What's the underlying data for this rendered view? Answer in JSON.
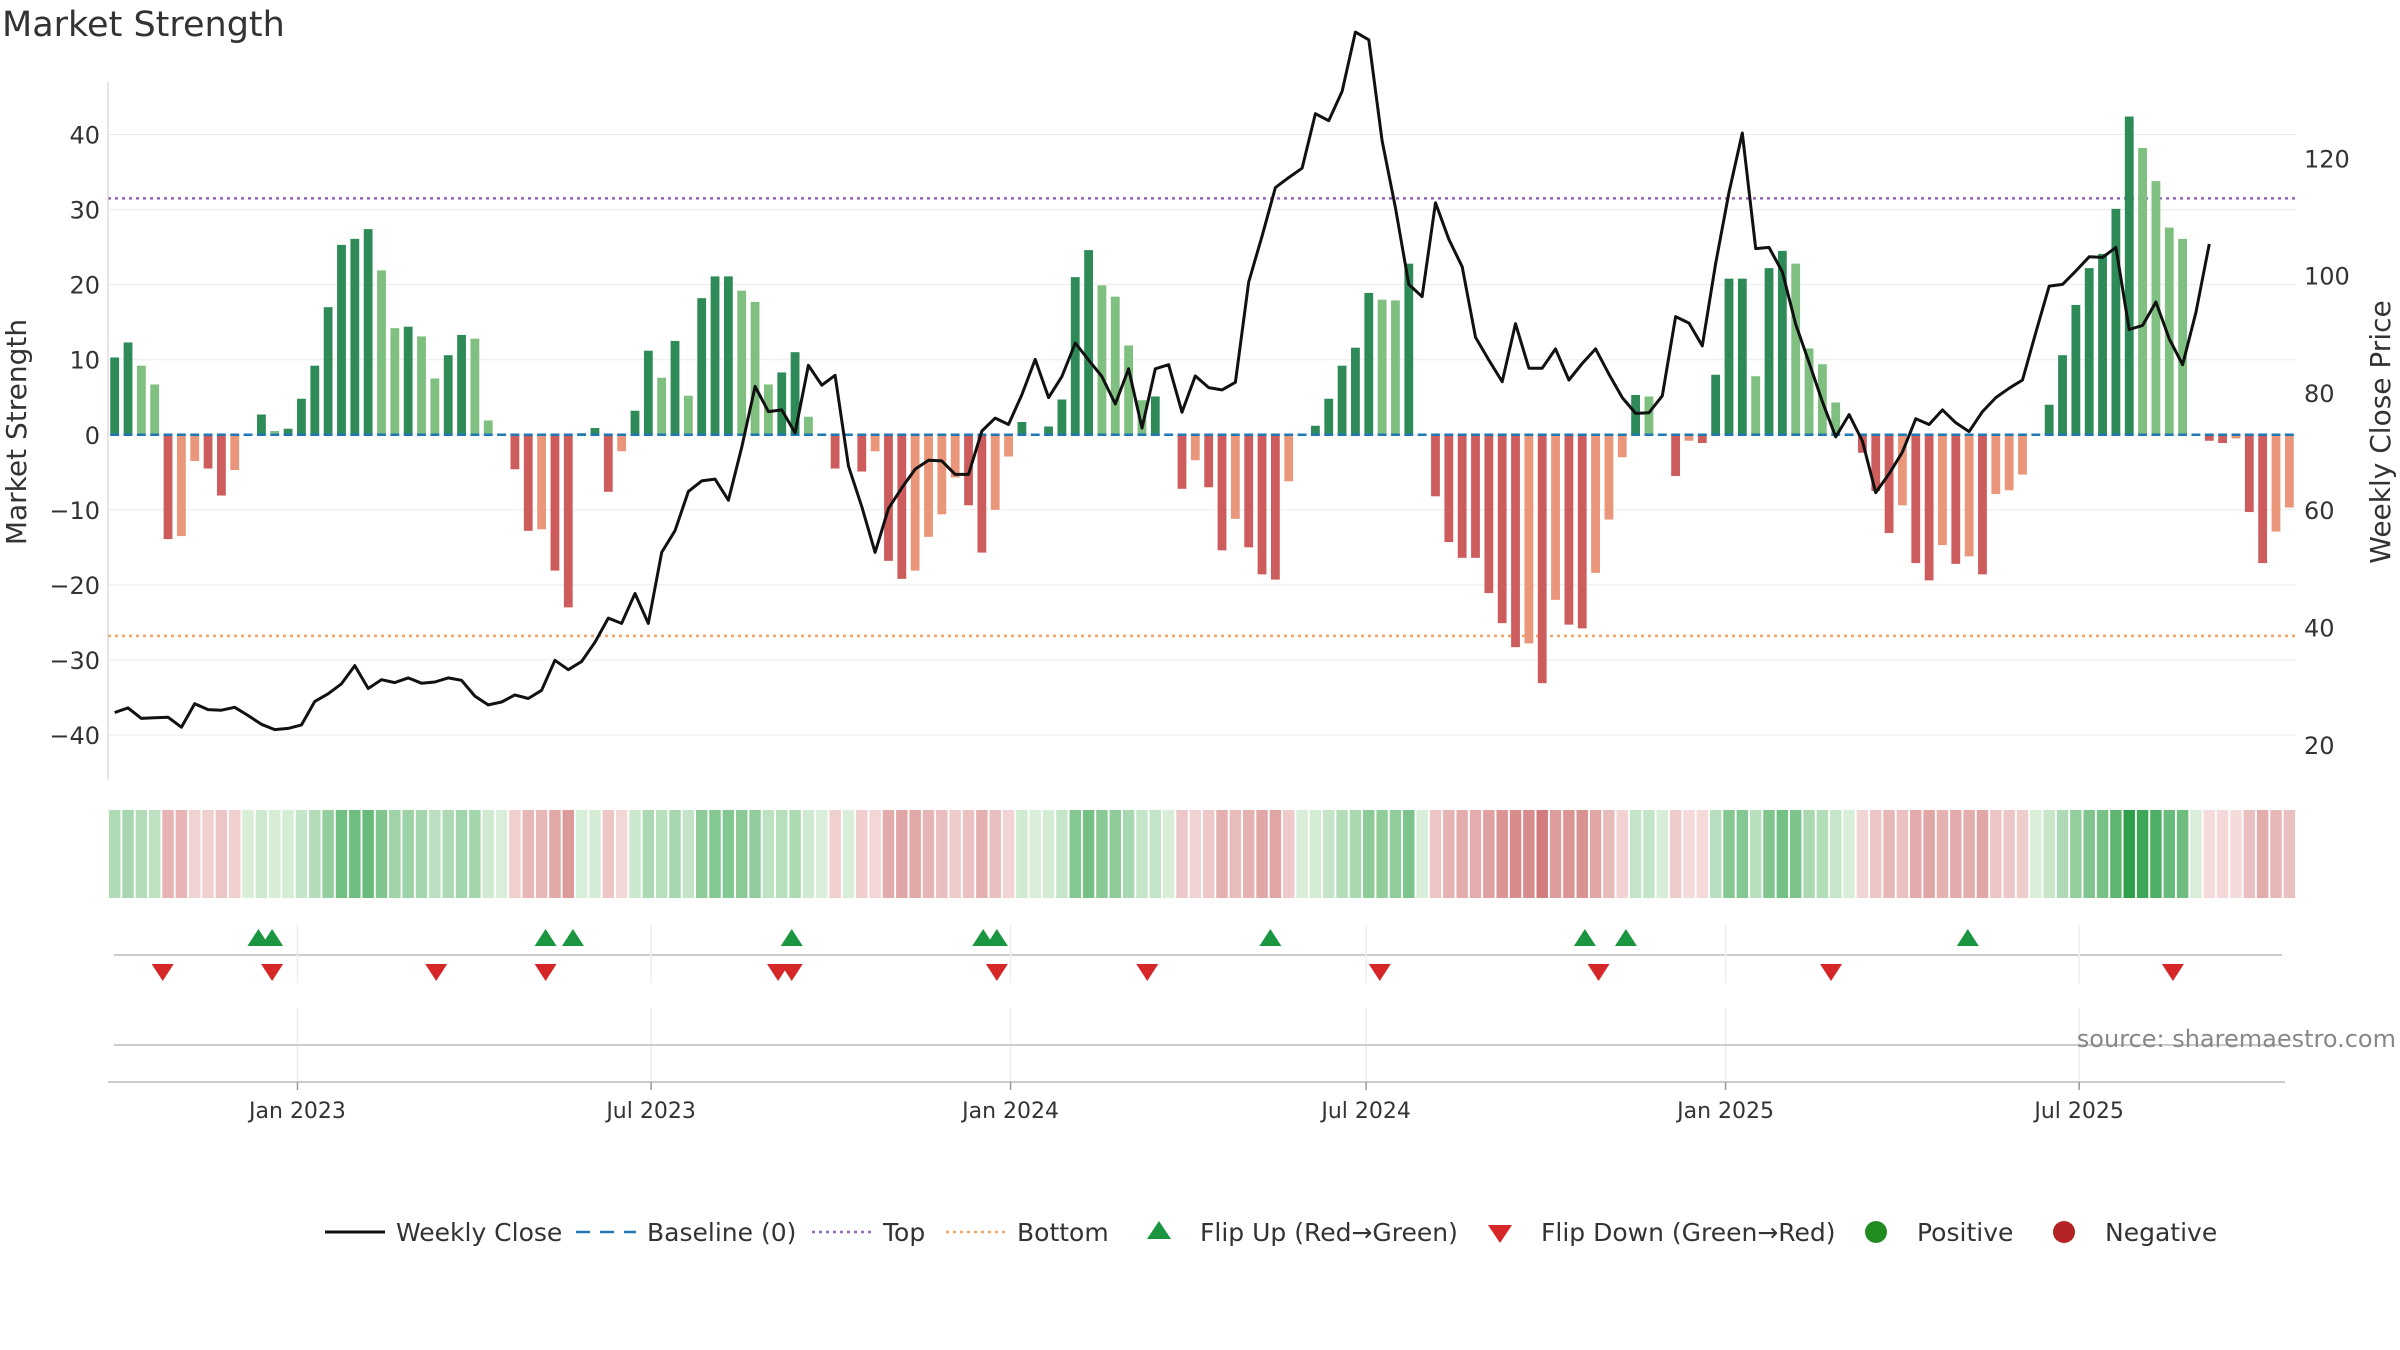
{
  "chart_data": {
    "type": "bar",
    "title": "Market Strength",
    "ylabel": "Market Strength",
    "y2label": "Weekly Close Price",
    "ylim": [
      -46,
      47
    ],
    "y2lim": [
      14,
      133
    ],
    "yticks": [
      40,
      30,
      20,
      10,
      0,
      -10,
      -20,
      -30,
      -40
    ],
    "yticklabels": [
      "40",
      "30",
      "20",
      "10",
      "0",
      "−10",
      "−20",
      "−30",
      "−40"
    ],
    "y2ticks": [
      120,
      100,
      80,
      60,
      40,
      20
    ],
    "x_start": "2022-09-26",
    "x_end": "2025-10-20",
    "xticks": [
      {
        "date": "2023-01-01",
        "label": "Jan 2023"
      },
      {
        "date": "2023-07-01",
        "label": "Jul 2023"
      },
      {
        "date": "2024-01-01",
        "label": "Jan 2024"
      },
      {
        "date": "2024-07-01",
        "label": "Jul 2024"
      },
      {
        "date": "2025-01-01",
        "label": "Jan 2025"
      },
      {
        "date": "2025-07-01",
        "label": "Jul 2025"
      }
    ],
    "top_line": 31.5,
    "bottom_line": -26.8,
    "strength": [
      10.3,
      12.3,
      9.2,
      6.7,
      -13.9,
      -13.5,
      -3.5,
      -4.5,
      -8.1,
      -4.7,
      0,
      2.7,
      0.5,
      0.8,
      4.8,
      9.2,
      17.0,
      25.3,
      26.1,
      27.4,
      21.9,
      14.2,
      14.4,
      13.1,
      7.5,
      10.6,
      13.3,
      12.8,
      1.9,
      0,
      -4.6,
      -12.8,
      -12.6,
      -18.1,
      -23.0,
      0.2,
      0.9,
      -7.6,
      -2.2,
      3.2,
      11.2,
      7.6,
      12.5,
      5.2,
      18.2,
      21.1,
      21.1,
      19.2,
      17.7,
      6.7,
      8.3,
      11.0,
      2.4,
      0,
      -4.5,
      0,
      -4.9,
      -2.2,
      -16.8,
      -19.2,
      -18.1,
      -13.6,
      -10.6,
      -5.7,
      -9.4,
      -15.7,
      -10.0,
      -2.9,
      1.7,
      0,
      1.1,
      4.7,
      21.0,
      24.6,
      19.9,
      18.4,
      11.9,
      4.6,
      5.1,
      0,
      -7.2,
      -3.4,
      -7.0,
      -15.4,
      -11.2,
      -15.0,
      -18.6,
      -19.3,
      -6.2,
      0,
      1.2,
      4.8,
      9.2,
      11.6,
      18.9,
      18.0,
      17.9,
      22.8,
      0,
      -8.2,
      -14.3,
      -16.4,
      -16.4,
      -21.1,
      -25.1,
      -28.3,
      -27.8,
      -33.1,
      -22.0,
      -25.3,
      -25.8,
      -18.4,
      -11.3,
      -3.0,
      5.3,
      5.1,
      0,
      -5.5,
      -0.8,
      -1.1,
      8.0,
      20.8,
      20.8,
      7.8,
      22.2,
      24.5,
      22.8,
      11.5,
      9.4,
      4.3,
      0,
      -2.4,
      -7.5,
      -13.1,
      -9.4,
      -17.1,
      -19.4,
      -14.7,
      -17.2,
      -16.2,
      -18.6,
      -7.9,
      -7.4,
      -5.3,
      0,
      4.0,
      10.6,
      17.3,
      22.2,
      24.1,
      30.1,
      42.4,
      38.2,
      33.8,
      27.6,
      26.1,
      0,
      -0.8,
      -1.1,
      -0.5,
      -10.3,
      -17.1,
      -12.9,
      -9.7
    ],
    "close": [
      25.5,
      26.3,
      24.5,
      24.6,
      24.7,
      23.0,
      27.0,
      26.0,
      25.9,
      26.4,
      25.0,
      23.5,
      22.6,
      22.8,
      23.4,
      27.4,
      28.7,
      30.4,
      33.5,
      29.6,
      31.1,
      30.6,
      31.4,
      30.5,
      30.7,
      31.4,
      31.0,
      28.3,
      26.8,
      27.3,
      28.5,
      27.9,
      29.3,
      34.4,
      32.8,
      34.2,
      37.5,
      41.6,
      40.7,
      45.8,
      40.7,
      52.8,
      56.5,
      63.2,
      65.0,
      65.3,
      61.7,
      70.7,
      81.1,
      76.8,
      77.1,
      73.2,
      84.7,
      81.3,
      83.0,
      67.5,
      60.6,
      52.8,
      60.3,
      63.8,
      67.0,
      68.5,
      68.4,
      66.1,
      66.1,
      73.5,
      75.7,
      74.6,
      79.7,
      85.7,
      79.2,
      82.8,
      88.5,
      85.6,
      82.8,
      78.1,
      84.1,
      74.0,
      84.1,
      84.8,
      76.7,
      82.9,
      80.9,
      80.5,
      81.8,
      98.9,
      106.7,
      115.0,
      116.7,
      118.3,
      127.6,
      126.4,
      131.4,
      141.5,
      140.2,
      123.0,
      111.5,
      98.5,
      96.4,
      112.4,
      106.2,
      101.5,
      89.5,
      85.6,
      81.9,
      91.8,
      84.2,
      84.2,
      87.5,
      82.2,
      85.0,
      87.5,
      83.2,
      79.2,
      76.5,
      76.6,
      79.5,
      93.0,
      91.9,
      88.0,
      102.0,
      114.2,
      124.3,
      104.6,
      104.8,
      100.6,
      91.7,
      85.2,
      78.5,
      72.5,
      76.3,
      71.8,
      63.0,
      66.2,
      69.9,
      75.6,
      74.6,
      77.1,
      74.9,
      73.4,
      76.8,
      79.2,
      80.8,
      82.2,
      90.3,
      98.2,
      98.5,
      100.8,
      103.2,
      103.1,
      104.8,
      90.8,
      91.5,
      95.5,
      89.2,
      84.8,
      93.7,
      105.4
    ],
    "flip_up_dates": [
      "2022-12-12",
      "2022-12-19",
      "2023-05-08",
      "2023-05-22",
      "2023-09-11",
      "2023-12-18",
      "2023-12-25",
      "2024-05-13",
      "2024-10-21",
      "2024-11-11",
      "2025-05-05"
    ],
    "flip_down_dates": [
      "2022-10-24",
      "2022-12-19",
      "2023-03-13",
      "2023-05-08",
      "2023-09-04",
      "2023-09-11",
      "2023-12-25",
      "2024-03-11",
      "2024-07-08",
      "2024-10-28",
      "2025-02-24",
      "2025-08-18"
    ],
    "legend": [
      {
        "key": "close",
        "label": "Weekly Close"
      },
      {
        "key": "baseline",
        "label": "Baseline (0)"
      },
      {
        "key": "top",
        "label": "Top"
      },
      {
        "key": "bottom",
        "label": "Bottom"
      },
      {
        "key": "flipup",
        "label": "Flip Up (Red→Green)"
      },
      {
        "key": "flipdown",
        "label": "Flip Down (Green→Red)"
      },
      {
        "key": "pos",
        "label": "Positive"
      },
      {
        "key": "neg",
        "label": "Negative"
      }
    ],
    "legend_position": "bottom"
  },
  "source_text": "source: sharemaestro.com",
  "colors": {
    "pos_dark": "#2e8b57",
    "pos_light": "#7fbf7f",
    "neg_dark": "#cd5c5c",
    "neg_light": "#e9967a",
    "close_line": "#111111",
    "baseline": "#1f77b4",
    "top": "#9467bd",
    "bottom": "#f4a460",
    "flip_up": "#1a9641",
    "flip_down": "#d62728",
    "positive_dot": "#228b22",
    "negative_dot": "#b22222"
  }
}
